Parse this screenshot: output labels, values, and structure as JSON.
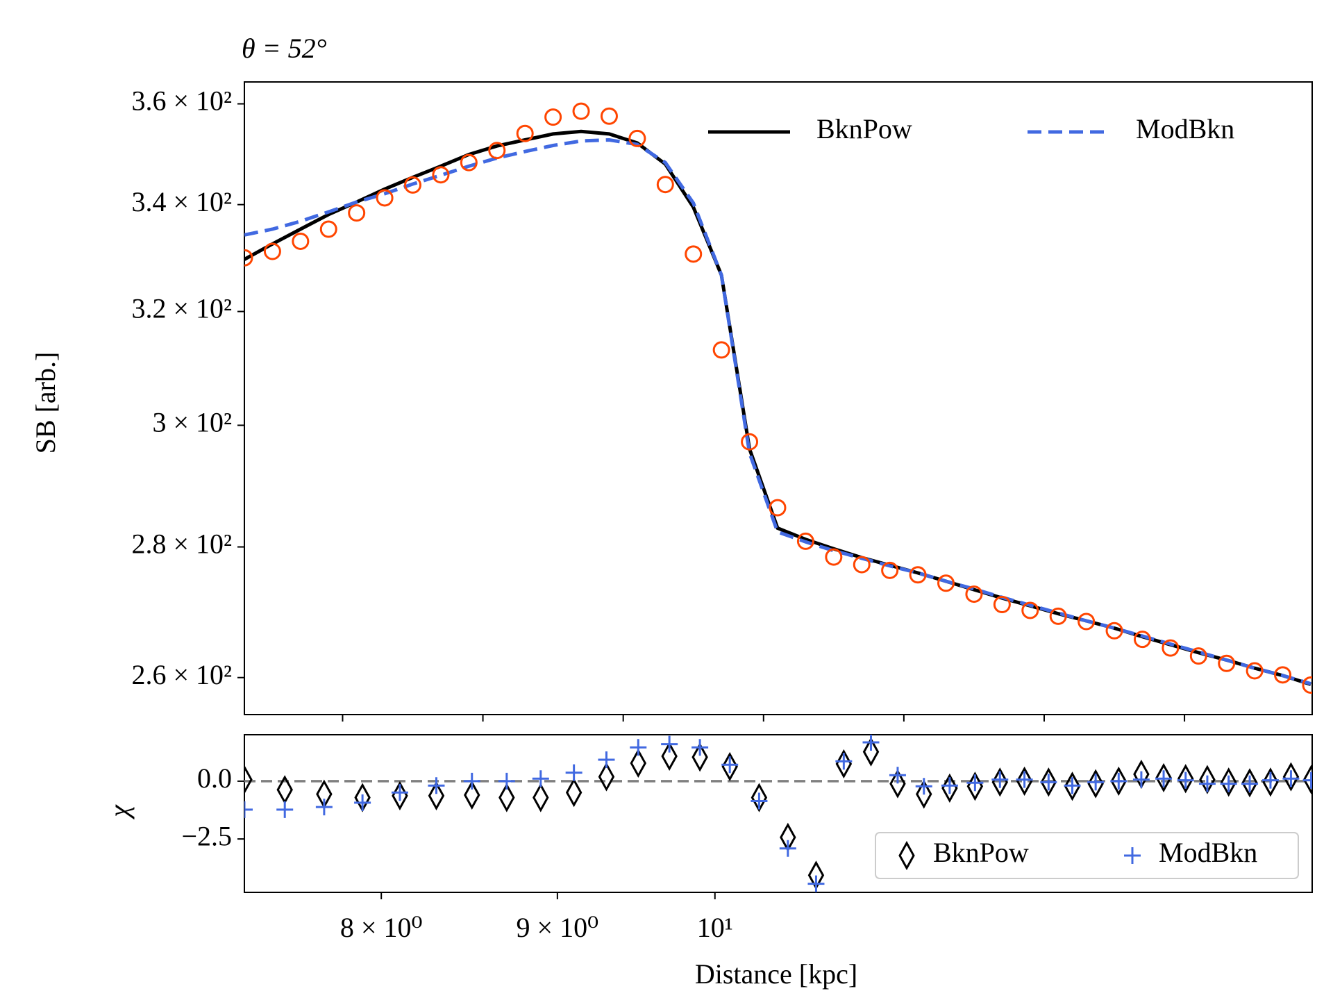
{
  "chart_data": [
    {
      "type": "line",
      "title": "θ = 52°",
      "ylabel": "SB [arb.]",
      "x": [
        7.3,
        7.5,
        7.7,
        7.9,
        8.1,
        8.3,
        8.5,
        8.7,
        8.9,
        9.1,
        9.3,
        9.5,
        9.7,
        9.9,
        10.1,
        10.3,
        10.5,
        10.7,
        10.9,
        11.1,
        11.3,
        11.5,
        11.7,
        11.9,
        12.1,
        12.3,
        12.5,
        12.7,
        12.9,
        13.1,
        13.3,
        13.5,
        13.7,
        13.9,
        14.1,
        14.3,
        14.5,
        14.7,
        14.9
      ],
      "values": [
        329.9,
        331.1,
        333.0,
        335.3,
        338.4,
        341.3,
        343.8,
        345.8,
        348.2,
        350.6,
        354.0,
        357.3,
        358.5,
        357.5,
        353.0,
        343.9,
        330.6,
        313.1,
        297.2,
        286.3,
        280.9,
        278.4,
        277.2,
        276.3,
        275.6,
        274.3,
        272.6,
        271.0,
        270.1,
        269.2,
        268.4,
        267.0,
        265.7,
        264.4,
        263.2,
        262.1,
        261.0,
        260.4,
        258.9
      ],
      "marker_color": "#ff4500",
      "series": [
        {
          "name": "BknPow",
          "color": "#000000",
          "dash": false,
          "values": [
            329.6,
            332.5,
            335.3,
            338.1,
            340.5,
            343.0,
            345.3,
            347.5,
            349.8,
            351.5,
            352.7,
            353.9,
            354.4,
            353.9,
            352.1,
            347.9,
            339.5,
            326.7,
            296.0,
            283.0,
            281.2,
            279.7,
            278.3,
            277.1,
            275.9,
            274.6,
            273.3,
            272.0,
            270.8,
            269.6,
            268.5,
            267.4,
            266.1,
            264.9,
            263.7,
            262.6,
            261.4,
            260.3,
            259.0
          ]
        },
        {
          "name": "ModBkn",
          "color": "#4169e1",
          "dash": true,
          "values": [
            334.2,
            335.3,
            336.8,
            338.6,
            340.5,
            342.1,
            344.0,
            345.7,
            347.5,
            349.1,
            350.4,
            351.6,
            352.5,
            352.7,
            351.8,
            348.2,
            340.3,
            326.7,
            295.3,
            282.4,
            280.8,
            279.4,
            278.2,
            277.0,
            275.9,
            274.6,
            273.4,
            272.1,
            270.9,
            269.7,
            268.5,
            267.4,
            266.2,
            265.0,
            263.8,
            262.6,
            261.4,
            260.3,
            259.1
          ]
        }
      ],
      "xlim": [
        7.3,
        14.91
      ],
      "xticks": [
        8,
        9,
        10,
        11,
        12,
        13,
        14
      ],
      "ylim": [
        254.6,
        364.5
      ],
      "log_y": true,
      "yticks": [
        {
          "value": 260,
          "label": "2.6 × 10²"
        },
        {
          "value": 280,
          "label": "2.8 × 10²"
        },
        {
          "value": 300,
          "label": "3 × 10²"
        },
        {
          "value": 320,
          "label": "3.2 × 10²"
        },
        {
          "value": 340,
          "label": "3.4 × 10²"
        },
        {
          "value": 360,
          "label": "3.6 × 10²"
        }
      ],
      "legend": "upper right"
    },
    {
      "type": "scatter",
      "ylabel": "χ",
      "xlabel": "Distance [kpc]",
      "x": [
        7.3,
        7.5,
        7.7,
        7.9,
        8.1,
        8.3,
        8.5,
        8.7,
        8.9,
        9.1,
        9.3,
        9.5,
        9.7,
        9.9,
        10.1,
        10.3,
        10.5,
        10.7,
        10.9,
        11.1,
        11.3,
        11.5,
        11.7,
        11.9,
        12.1,
        12.3,
        12.5,
        12.7,
        12.9,
        13.1,
        13.3,
        13.5,
        13.7,
        13.9,
        14.1,
        14.3,
        14.5,
        14.7,
        14.9
      ],
      "series": [
        {
          "name": "BknPow",
          "color": "#000000",
          "marker": "diamond",
          "values": [
            0.07,
            -0.37,
            -0.56,
            -0.71,
            -0.63,
            -0.63,
            -0.6,
            -0.71,
            -0.71,
            -0.49,
            0.19,
            0.78,
            1.08,
            1.04,
            0.63,
            -0.71,
            -2.43,
            -4.07,
            0.75,
            1.27,
            -0.11,
            -0.56,
            -0.3,
            -0.22,
            -0.04,
            0.0,
            -0.04,
            -0.22,
            -0.11,
            0.0,
            0.3,
            0.15,
            0.11,
            0.07,
            -0.04,
            -0.07,
            -0.04,
            0.19,
            0.07
          ]
        },
        {
          "name": "ModBkn",
          "color": "#4169e1",
          "marker": "plus",
          "values": [
            -1.23,
            -1.23,
            -1.12,
            -0.93,
            -0.49,
            -0.19,
            0.0,
            0.0,
            0.11,
            0.37,
            0.93,
            1.46,
            1.6,
            1.46,
            0.71,
            -0.86,
            -2.91,
            -4.44,
            0.86,
            1.68,
            0.26,
            -0.22,
            -0.19,
            -0.07,
            0.07,
            0.07,
            -0.04,
            -0.19,
            -0.04,
            0.0,
            0.07,
            0.11,
            0.04,
            -0.11,
            -0.11,
            -0.11,
            0.04,
            0.11,
            0.04
          ]
        }
      ],
      "hline": 0,
      "hline_color": "#808080",
      "xlim": [
        7.3,
        14.91
      ],
      "log_x": true,
      "xticks": [
        {
          "value": 8,
          "label": "8 × 10⁰"
        },
        {
          "value": 9,
          "label": "9 × 10⁰"
        },
        {
          "value": 10,
          "label": "10¹"
        }
      ],
      "ylim": [
        -4.81,
        2.01
      ],
      "yticks": [
        {
          "value": 0,
          "label": "0.0"
        },
        {
          "value": -2.5,
          "label": "−2.5"
        }
      ],
      "legend": "lower right"
    }
  ]
}
